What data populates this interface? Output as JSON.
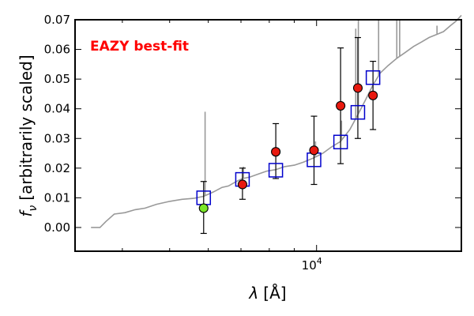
{
  "chart_data": {
    "type": "scatter",
    "annotation": "EAZY best-fit",
    "xlabel_symbol": "λ",
    "xlabel_unit": "[Å]",
    "ylabel_symbol": "f",
    "ylabel_subscript": "ν",
    "ylabel_text": "[arbitrarily scaled]",
    "x_scale": "log",
    "xlim": [
      3200,
      19800
    ],
    "ylim": [
      -0.008,
      0.07
    ],
    "y_ticks": [
      0.0,
      0.01,
      0.02,
      0.03,
      0.04,
      0.05,
      0.06,
      0.07
    ],
    "y_tick_labels": [
      "0.00",
      "0.01",
      "0.02",
      "0.03",
      "0.04",
      "0.05",
      "0.06",
      "0.07"
    ],
    "x_major_ticks": [
      10000
    ],
    "x_major_tick_labels": [
      {
        "base": "10",
        "exp": "4"
      }
    ],
    "x_minor_ticks": [
      4000,
      5000,
      6000,
      7000,
      8000,
      9000
    ],
    "grid": false,
    "annotation_color": "#ff0000",
    "observed_color": "#e8190f",
    "observed_low_sn_color": "#7ae628",
    "model_box_color": "#0000cc",
    "sed_color": "#999999",
    "series": [
      {
        "kind": "observed",
        "points": [
          {
            "x": 5870,
            "y": 0.0065,
            "yerr_low": 0.0085,
            "yerr_high": 0.009,
            "color": "#7ae628"
          },
          {
            "x": 7050,
            "y": 0.0145,
            "yerr_low": 0.005,
            "yerr_high": 0.0055,
            "color": "#e8190f"
          },
          {
            "x": 8250,
            "y": 0.0255,
            "yerr_low": 0.009,
            "yerr_high": 0.0095,
            "color": "#e8190f"
          },
          {
            "x": 9880,
            "y": 0.026,
            "yerr_low": 0.0115,
            "yerr_high": 0.0115,
            "color": "#e8190f"
          },
          {
            "x": 11200,
            "y": 0.041,
            "yerr_low": 0.0195,
            "yerr_high": 0.0195,
            "color": "#e8190f"
          },
          {
            "x": 12150,
            "y": 0.047,
            "yerr_low": 0.017,
            "yerr_high": 0.017,
            "color": "#e8190f"
          },
          {
            "x": 13050,
            "y": 0.0445,
            "yerr_low": 0.0115,
            "yerr_high": 0.0115,
            "color": "#e8190f"
          }
        ]
      },
      {
        "kind": "model",
        "points": [
          {
            "x": 5870,
            "y": 0.01
          },
          {
            "x": 7050,
            "y": 0.0162
          },
          {
            "x": 8250,
            "y": 0.0193
          },
          {
            "x": 9880,
            "y": 0.0228
          },
          {
            "x": 11200,
            "y": 0.0288
          },
          {
            "x": 12150,
            "y": 0.0388
          },
          {
            "x": 13050,
            "y": 0.0505
          }
        ]
      }
    ],
    "sed_curve": [
      [
        3450,
        0.0
      ],
      [
        3600,
        0.0
      ],
      [
        3700,
        0.002
      ],
      [
        3850,
        0.0045
      ],
      [
        4050,
        0.005
      ],
      [
        4250,
        0.006
      ],
      [
        4450,
        0.0065
      ],
      [
        4700,
        0.0078
      ],
      [
        5000,
        0.0088
      ],
      [
        5300,
        0.0095
      ],
      [
        5600,
        0.0098
      ],
      [
        5870,
        0.0105
      ],
      [
        6150,
        0.012
      ],
      [
        6400,
        0.0135
      ],
      [
        6600,
        0.014
      ],
      [
        6850,
        0.0155
      ],
      [
        7050,
        0.0165
      ],
      [
        7300,
        0.017
      ],
      [
        7600,
        0.018
      ],
      [
        7900,
        0.019
      ],
      [
        8250,
        0.0195
      ],
      [
        8600,
        0.0205
      ],
      [
        9000,
        0.021
      ],
      [
        9400,
        0.022
      ],
      [
        9880,
        0.0235
      ],
      [
        10300,
        0.025
      ],
      [
        10700,
        0.027
      ],
      [
        11200,
        0.029
      ],
      [
        11700,
        0.033
      ],
      [
        12150,
        0.038
      ],
      [
        12600,
        0.043
      ],
      [
        13050,
        0.048
      ],
      [
        13500,
        0.052
      ],
      [
        14000,
        0.0545
      ],
      [
        14600,
        0.057
      ],
      [
        15200,
        0.059
      ],
      [
        15800,
        0.061
      ],
      [
        16400,
        0.0625
      ],
      [
        17000,
        0.064
      ],
      [
        17600,
        0.065
      ],
      [
        18200,
        0.066
      ],
      [
        18800,
        0.068
      ],
      [
        19300,
        0.0695
      ],
      [
        19800,
        0.0715
      ]
    ],
    "sed_spikes": [
      [
        5910,
        0.039
      ],
      [
        7080,
        0.0205
      ],
      [
        9950,
        0.029
      ],
      [
        11250,
        0.036
      ],
      [
        12030,
        0.067
      ],
      [
        12180,
        0.075
      ],
      [
        13400,
        0.08
      ],
      [
        14600,
        0.075
      ],
      [
        14800,
        0.07
      ],
      [
        17650,
        0.068
      ]
    ]
  }
}
